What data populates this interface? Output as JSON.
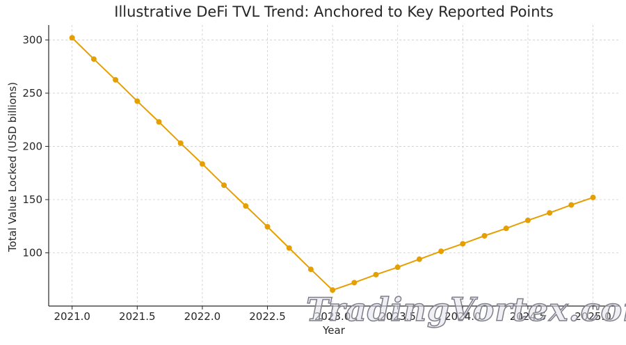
{
  "watermark": "TradingVortex.com",
  "chart_data": {
    "type": "line",
    "title": "Illustrative DeFi TVL Trend: Anchored to Key Reported Points",
    "xlabel": "Year",
    "ylabel": "Total Value Locked (USD billions)",
    "xlim": [
      2020.82,
      2025.2
    ],
    "ylim": [
      50,
      314
    ],
    "xticks": [
      "2021.0",
      "2021.5",
      "2022.0",
      "2022.5",
      "2023.0",
      "2023.5",
      "2024.0",
      "2024.5",
      "2025.0"
    ],
    "yticks": [
      "100",
      "150",
      "200",
      "250",
      "300"
    ],
    "grid": true,
    "line_color": "#E69F00",
    "series": [
      {
        "x": [
          2021.0,
          2021.1667,
          2021.3333,
          2021.5,
          2021.6667,
          2021.8333,
          2022.0,
          2022.1667,
          2022.3333,
          2022.5,
          2022.6667,
          2022.8333,
          2023.0,
          2023.1667,
          2023.3333,
          2023.5,
          2023.6667,
          2023.8333,
          2024.0,
          2024.1667,
          2024.3333,
          2024.5,
          2024.6667,
          2024.8333,
          2025.0
        ],
        "y": [
          302,
          282,
          262.5,
          242.5,
          223,
          203,
          183.5,
          163.5,
          144,
          124.5,
          104.5,
          84.5,
          65,
          72,
          79.5,
          86.5,
          94,
          101.5,
          108.5,
          116,
          123,
          130.5,
          137.5,
          145,
          152
        ]
      }
    ]
  }
}
